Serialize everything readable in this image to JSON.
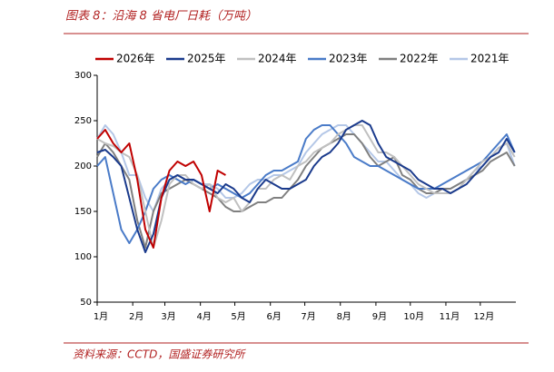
{
  "chart_data": {
    "type": "line",
    "title": "图表 8：沿海 8 省电厂日耗（万吨）",
    "source": "资料来源：CCTD，国盛证券研究所",
    "x": [
      0,
      7,
      14,
      21,
      28,
      35,
      42,
      49,
      56,
      63,
      70,
      77,
      84,
      91,
      98,
      105,
      112,
      119,
      126,
      133,
      140,
      147,
      154,
      161,
      168,
      175,
      182,
      189,
      196,
      203,
      210,
      217,
      224,
      231,
      238,
      245,
      252,
      259,
      266,
      273,
      280,
      287,
      294,
      301,
      308,
      315,
      322,
      329,
      336,
      343,
      350,
      357,
      364
    ],
    "xlim": [
      0,
      365
    ],
    "xticks": [
      {
        "value": 0,
        "label": "1月"
      },
      {
        "value": 31,
        "label": "2月"
      },
      {
        "value": 59,
        "label": "3月"
      },
      {
        "value": 90,
        "label": "4月"
      },
      {
        "value": 120,
        "label": "5月"
      },
      {
        "value": 151,
        "label": "6月"
      },
      {
        "value": 181,
        "label": "7月"
      },
      {
        "value": 212,
        "label": "8月"
      },
      {
        "value": 243,
        "label": "9月"
      },
      {
        "value": 273,
        "label": "10月"
      },
      {
        "value": 304,
        "label": "11月"
      },
      {
        "value": 334,
        "label": "12月"
      }
    ],
    "ylim": [
      50,
      300
    ],
    "yticks": [
      50,
      100,
      150,
      200,
      250,
      300
    ],
    "series": [
      {
        "name": "2026年",
        "color": "#c00000",
        "values": [
          230,
          240,
          225,
          215,
          225,
          185,
          130,
          110,
          165,
          195,
          205,
          200,
          205,
          190,
          150,
          195,
          190,
          null,
          null,
          null,
          null,
          null,
          null,
          null,
          null,
          null,
          null,
          null,
          null,
          null,
          null,
          null,
          null,
          null,
          null,
          null,
          null,
          null,
          null,
          null,
          null,
          null,
          null,
          null,
          null,
          null,
          null,
          null,
          null,
          null,
          null,
          null,
          null
        ]
      },
      {
        "name": "2025年",
        "color": "#1a3a8c",
        "values": [
          215,
          218,
          210,
          200,
          165,
          130,
          105,
          125,
          165,
          185,
          190,
          185,
          185,
          180,
          175,
          170,
          180,
          175,
          165,
          160,
          175,
          185,
          180,
          175,
          175,
          180,
          185,
          200,
          210,
          215,
          225,
          240,
          245,
          250,
          245,
          225,
          210,
          205,
          200,
          195,
          185,
          180,
          175,
          175,
          170,
          175,
          180,
          190,
          200,
          210,
          215,
          230,
          215
        ]
      },
      {
        "name": "2024年",
        "color": "#c0c0c0",
        "values": [
          230,
          225,
          222,
          215,
          210,
          190,
          150,
          110,
          140,
          180,
          190,
          190,
          180,
          175,
          180,
          165,
          160,
          165,
          150,
          160,
          175,
          175,
          185,
          190,
          185,
          200,
          205,
          215,
          220,
          225,
          235,
          240,
          245,
          245,
          230,
          215,
          215,
          210,
          200,
          190,
          180,
          175,
          170,
          170,
          170,
          175,
          185,
          195,
          205,
          210,
          220,
          225,
          210
        ]
      },
      {
        "name": "2023年",
        "color": "#4a7bc8",
        "values": [
          200,
          210,
          170,
          130,
          115,
          130,
          150,
          175,
          185,
          190,
          185,
          180,
          185,
          180,
          175,
          180,
          175,
          170,
          165,
          170,
          180,
          190,
          195,
          195,
          200,
          205,
          230,
          240,
          245,
          245,
          235,
          225,
          210,
          205,
          200,
          200,
          195,
          190,
          185,
          180,
          175,
          175,
          175,
          180,
          185,
          190,
          195,
          200,
          205,
          215,
          225,
          235,
          215
        ]
      },
      {
        "name": "2022年",
        "color": "#808080",
        "values": [
          210,
          225,
          215,
          200,
          185,
          140,
          110,
          150,
          170,
          175,
          180,
          185,
          180,
          175,
          170,
          165,
          155,
          150,
          150,
          155,
          160,
          160,
          165,
          165,
          175,
          185,
          200,
          210,
          220,
          225,
          230,
          235,
          235,
          225,
          210,
          200,
          205,
          210,
          190,
          185,
          175,
          170,
          170,
          175,
          175,
          180,
          185,
          190,
          195,
          205,
          210,
          215,
          200
        ]
      },
      {
        "name": "2021年",
        "color": "#b4c7e7",
        "values": [
          230,
          245,
          235,
          215,
          190,
          190,
          165,
          150,
          175,
          185,
          190,
          185,
          185,
          180,
          180,
          175,
          165,
          165,
          170,
          180,
          185,
          185,
          190,
          190,
          195,
          200,
          215,
          225,
          235,
          240,
          245,
          245,
          235,
          225,
          215,
          205,
          205,
          195,
          185,
          180,
          170,
          165,
          170,
          175,
          175,
          180,
          185,
          195,
          200,
          210,
          220,
          225,
          200
        ]
      }
    ]
  }
}
